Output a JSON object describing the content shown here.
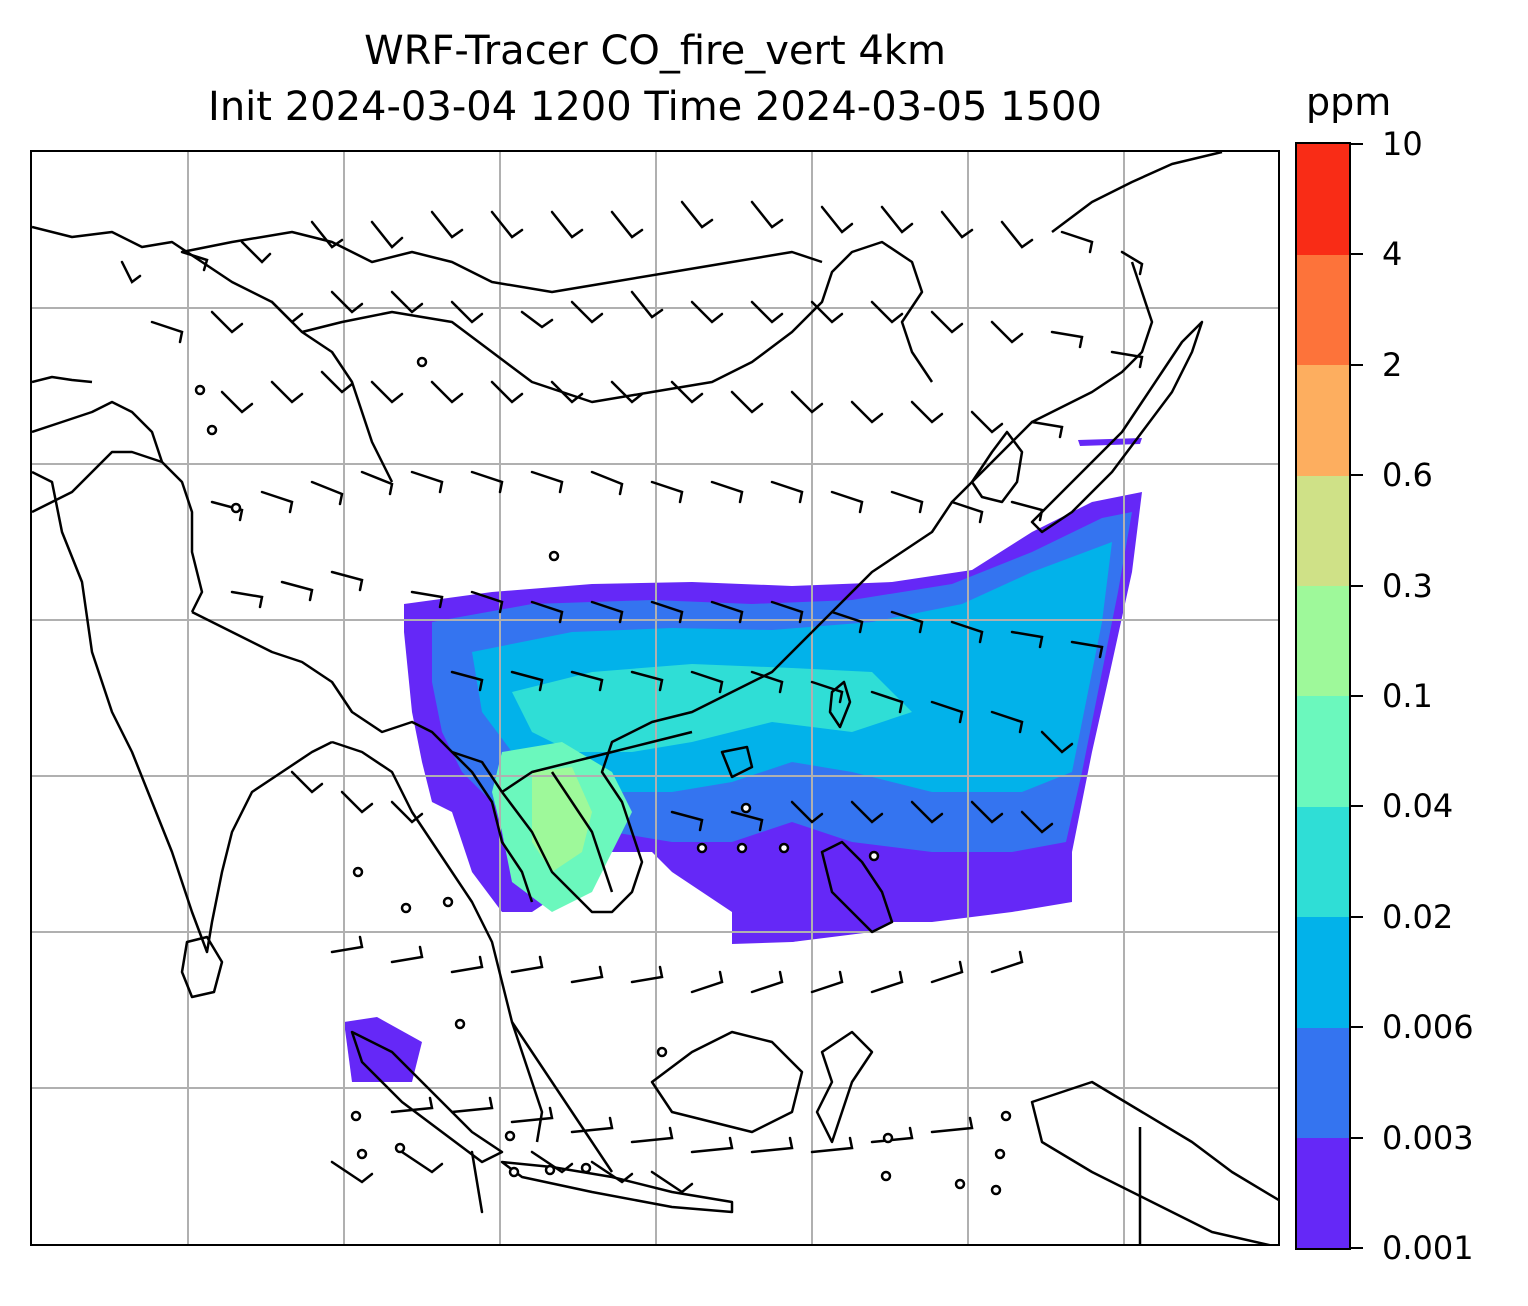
{
  "title": {
    "line1": "WRF-Tracer CO_fire_vert 4km",
    "line2": "Init 2024-03-04 1200 Time 2024-03-05 1500"
  },
  "colorbar": {
    "unit": "ppm",
    "levels": [
      "0.001",
      "0.003",
      "0.006",
      "0.02",
      "0.04",
      "0.1",
      "0.3",
      "0.6",
      "2",
      "4",
      "10"
    ],
    "colors": [
      "#6528f7",
      "#3474f0",
      "#02b2ea",
      "#2fded6",
      "#6bf8bd",
      "#9ef99a",
      "#cfe187",
      "#fdae5f",
      "#fd733a",
      "#f92c16"
    ]
  },
  "map": {
    "gridlines": true,
    "grid_color": "#b0b0b0",
    "coastline_color": "#000000",
    "barb_color": "#000000"
  }
}
